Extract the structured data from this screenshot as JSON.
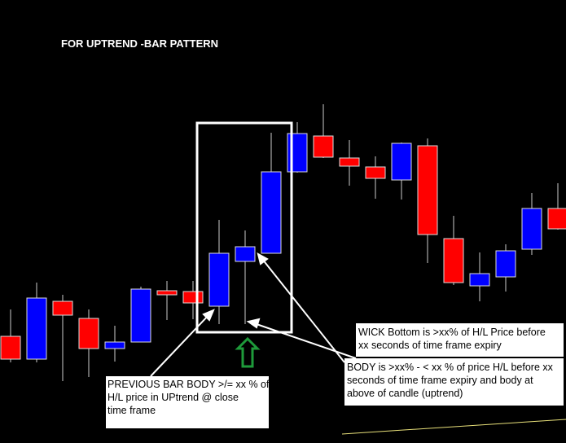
{
  "header": {
    "title": "FOR UPTREND -BAR PATTERN"
  },
  "notes": [
    {
      "lines": [
        "WICK Bottom is >xx% of H/L Price before",
        "xx seconds of time frame expiry"
      ]
    },
    {
      "lines": [
        "BODY is >xx% - < xx % of price H/L before xx",
        "seconds of time frame expiry and body at",
        "above of candle (uptrend)"
      ]
    },
    {
      "lines": [
        "PREVIOUS BAR BODY >/= xx % of",
        "H/L price in UPtrend @ close",
        "time frame"
      ]
    }
  ]
}
